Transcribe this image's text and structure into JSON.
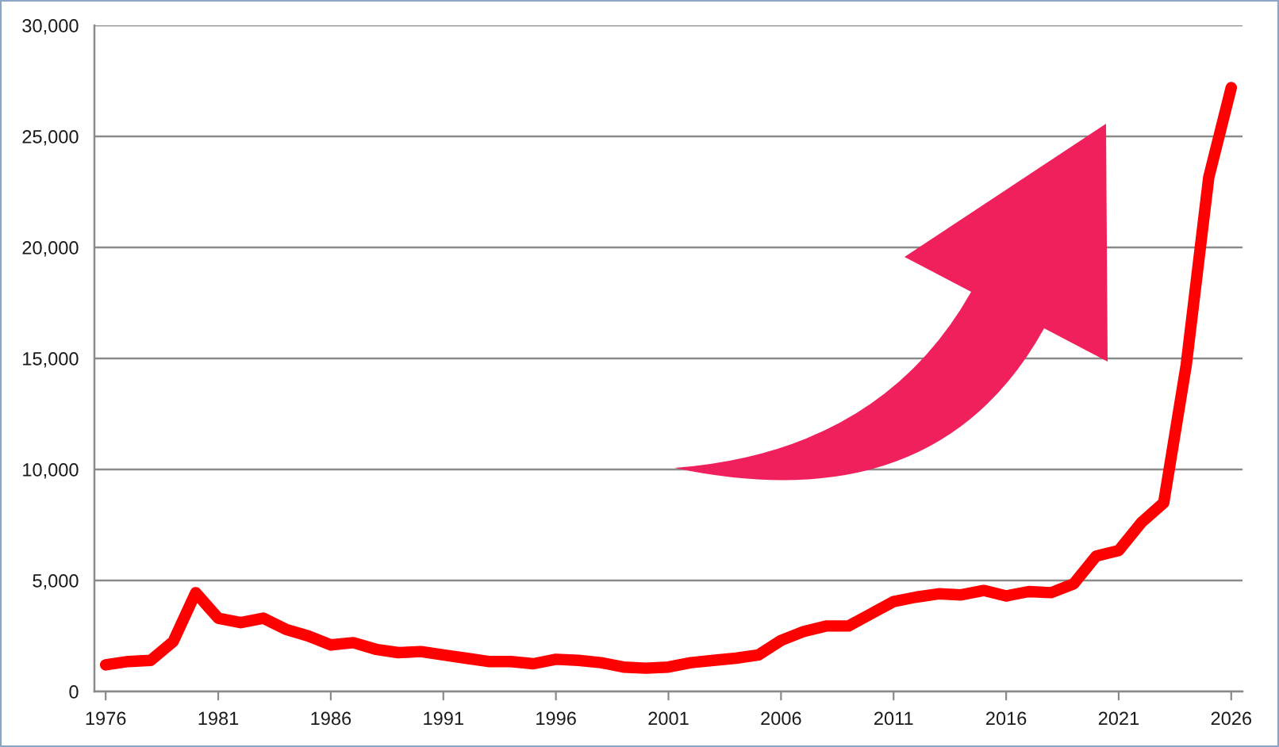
{
  "chart_data": {
    "type": "line",
    "x": [
      1976,
      1977,
      1978,
      1979,
      1980,
      1981,
      1982,
      1983,
      1984,
      1985,
      1986,
      1987,
      1988,
      1989,
      1990,
      1991,
      1992,
      1993,
      1994,
      1995,
      1996,
      1997,
      1998,
      1999,
      2000,
      2001,
      2002,
      2003,
      2004,
      2005,
      2006,
      2007,
      2008,
      2009,
      2010,
      2011,
      2012,
      2013,
      2014,
      2015,
      2016,
      2017,
      2018,
      2019,
      2020,
      2021,
      2022,
      2023,
      2024,
      2025,
      2026
    ],
    "series": [
      {
        "color": "#ff0000",
        "values": [
          1200,
          1350,
          1400,
          2250,
          4450,
          3300,
          3100,
          3300,
          2800,
          2500,
          2100,
          2200,
          1900,
          1750,
          1800,
          1650,
          1500,
          1350,
          1350,
          1250,
          1450,
          1400,
          1300,
          1100,
          1050,
          1100,
          1300,
          1400,
          1500,
          1650,
          2300,
          2700,
          2950,
          2950,
          3500,
          4050,
          4250,
          4400,
          4350,
          4550,
          4300,
          4500,
          4450,
          4850,
          6100,
          6350,
          7600,
          8500,
          14700,
          23150,
          27200
        ]
      }
    ],
    "xlim": [
      1975.5,
      2026.5
    ],
    "xticks": [
      1976,
      1981,
      1986,
      1991,
      1996,
      2001,
      2006,
      2011,
      2016,
      2021,
      2026
    ],
    "ylim": [
      0,
      30000
    ],
    "yticks": [
      0,
      {
        "value": 5000,
        "label": "5,000"
      },
      {
        "value": 10000,
        "label": "10,000"
      },
      {
        "value": 15000,
        "label": "15,000"
      },
      {
        "value": 20000,
        "label": "20,000"
      },
      {
        "value": 25000,
        "label": "25,000"
      },
      {
        "value": 30000,
        "label": "30,000"
      }
    ],
    "grid": "y",
    "marker": "none",
    "line_style": "solid"
  }
}
